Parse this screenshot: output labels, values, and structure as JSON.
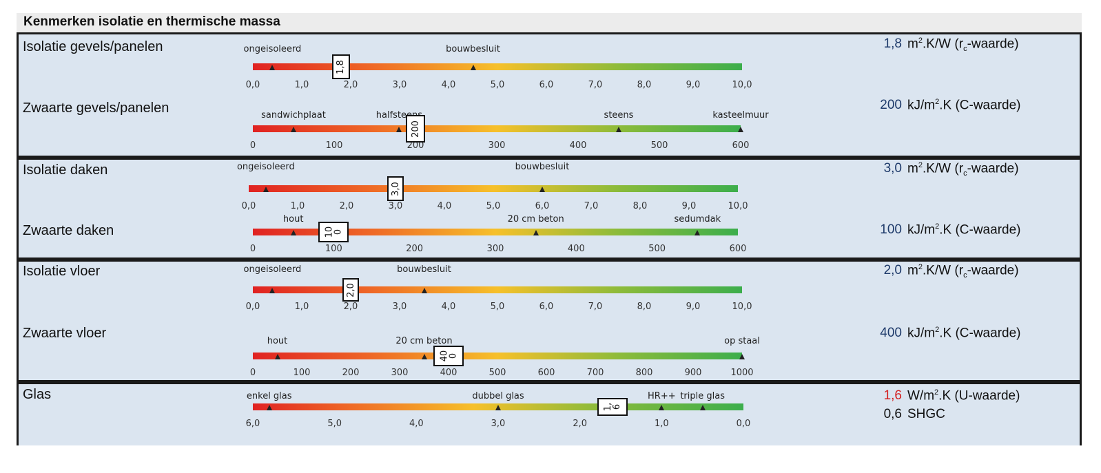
{
  "title": "Kenmerken isolatie en thermische massa",
  "sections": {
    "gevels": {
      "isolatie": {
        "label": "Isolatie gevels/panelen",
        "value": "1,8",
        "unit": "m².K/W (rc-waarde)",
        "marker_value": 1.8,
        "scale_min": 0,
        "scale_max": 10,
        "ticks": [
          "0,0",
          "1,0",
          "2,0",
          "3,0",
          "4,0",
          "5,0",
          "6,0",
          "7,0",
          "8,0",
          "9,0",
          "10,0"
        ],
        "references": [
          {
            "label": "ongeisoleerd",
            "value": 0.4
          },
          {
            "label": "bouwbesluit",
            "value": 4.5
          }
        ],
        "box_text": "1,8"
      },
      "zwaarte": {
        "label": "Zwaarte gevels/panelen",
        "value": "200",
        "unit": "kJ/m².K (C-waarde)",
        "marker_value": 200,
        "scale_min": 0,
        "scale_max": 600,
        "ticks": [
          "0",
          "100",
          "200",
          "300",
          "400",
          "500",
          "600"
        ],
        "references": [
          {
            "label": "sandwichplaat",
            "value": 50
          },
          {
            "label": "halfsteens",
            "value": 180
          },
          {
            "label": "steens",
            "value": 450
          },
          {
            "label": "kasteelmuur",
            "value": 600
          }
        ],
        "box_text": "200"
      }
    },
    "daken": {
      "isolatie": {
        "label": "Isolatie daken",
        "value": "3,0",
        "unit": "m².K/W (rc-waarde)",
        "marker_value": 3.0,
        "scale_min": 0,
        "scale_max": 10,
        "ticks": [
          "0,0",
          "1,0",
          "2,0",
          "3,0",
          "4,0",
          "5,0",
          "6,0",
          "7,0",
          "8,0",
          "9,0",
          "10,0"
        ],
        "references": [
          {
            "label": "ongeisoleerd",
            "value": 0.35
          },
          {
            "label": "bouwbesluit",
            "value": 6.0
          }
        ],
        "box_text": "3,0"
      },
      "zwaarte": {
        "label": "Zwaarte daken",
        "value": "100",
        "unit": "kJ/m².K (C-waarde)",
        "marker_value": 100,
        "scale_min": 0,
        "scale_max": 600,
        "ticks": [
          "0",
          "100",
          "200",
          "300",
          "400",
          "500",
          "600"
        ],
        "references": [
          {
            "label": "hout",
            "value": 50
          },
          {
            "label": "20 cm beton",
            "value": 350
          },
          {
            "label": "sedumdak",
            "value": 550
          }
        ],
        "box_text": "100"
      }
    },
    "vloer": {
      "isolatie": {
        "label": "Isolatie vloer",
        "value": "2,0",
        "unit": "m².K/W (rc-waarde)",
        "marker_value": 2.0,
        "scale_min": 0,
        "scale_max": 10,
        "ticks": [
          "0,0",
          "1,0",
          "2,0",
          "3,0",
          "4,0",
          "5,0",
          "6,0",
          "7,0",
          "8,0",
          "9,0",
          "10,0"
        ],
        "references": [
          {
            "label": "ongeisoleerd",
            "value": 0.4
          },
          {
            "label": "bouwbesluit",
            "value": 3.5
          }
        ],
        "box_text": "2,0"
      },
      "zwaarte": {
        "label": "Zwaarte vloer",
        "value": "400",
        "unit": "kJ/m².K (C-waarde)",
        "marker_value": 400,
        "scale_min": 0,
        "scale_max": 1000,
        "ticks": [
          "0",
          "100",
          "200",
          "300",
          "400",
          "500",
          "600",
          "700",
          "800",
          "900",
          "1000"
        ],
        "references": [
          {
            "label": "hout",
            "value": 50
          },
          {
            "label": "20 cm beton",
            "value": 350
          },
          {
            "label": "op staal",
            "value": 1000
          }
        ],
        "box_text": "400"
      }
    },
    "glas": {
      "label": "Glas",
      "value": "1,6",
      "unit": "W/m².K (U-waarde)",
      "value2": "0,6",
      "unit2": "SHGC",
      "marker_value": 1.6,
      "scale_min": 6,
      "scale_max": 0,
      "ticks": [
        "6,0",
        "5,0",
        "4,0",
        "3,0",
        "2,0",
        "1,0",
        "0,0"
      ],
      "references": [
        {
          "label": "enkel glas",
          "value": 5.8
        },
        {
          "label": "dubbel glas",
          "value": 3.0
        },
        {
          "label": "HR++",
          "value": 1.0
        },
        {
          "label": "triple glas",
          "value": 0.5
        }
      ],
      "box_text": "1,6"
    }
  },
  "colors": {
    "panel_bg": "#dbe5f0",
    "value_blue": "#1f3b6b",
    "value_red": "#d42020",
    "gradient": [
      "#e02222",
      "#ef6a26",
      "#f6c02a",
      "#8dbb3a",
      "#3cae4c"
    ]
  }
}
